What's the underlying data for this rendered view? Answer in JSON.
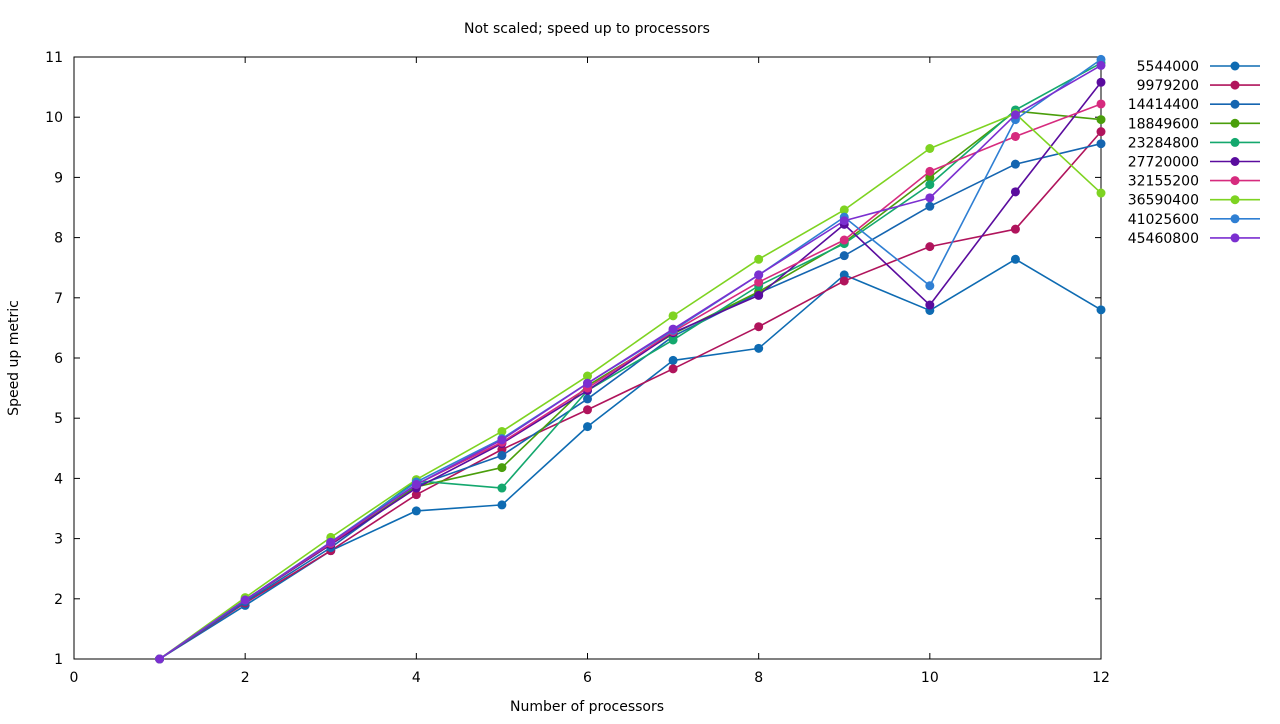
{
  "chart_data": {
    "type": "line",
    "title": "Not scaled; speed up to processors",
    "xlabel": "Number of processors",
    "ylabel": "Speed up metric",
    "xlim": [
      0,
      12
    ],
    "ylim": [
      1,
      11
    ],
    "x_ticks": [
      0,
      2,
      4,
      6,
      8,
      10,
      12
    ],
    "y_ticks": [
      1,
      2,
      3,
      4,
      5,
      6,
      7,
      8,
      9,
      10,
      11
    ],
    "grid": false,
    "legend_position": "outside-right",
    "x": [
      1,
      2,
      3,
      4,
      5,
      6,
      7,
      8,
      9,
      10,
      11,
      12
    ],
    "series": [
      {
        "name": "5544000",
        "color": "#0e6bb2",
        "values": [
          1,
          1.89,
          2.8,
          3.46,
          3.56,
          4.86,
          5.96,
          6.16,
          7.38,
          6.79,
          7.64,
          6.8
        ]
      },
      {
        "name": "9979200",
        "color": "#b0145c",
        "values": [
          1,
          1.93,
          2.8,
          3.73,
          4.48,
          5.14,
          5.82,
          6.52,
          7.28,
          7.85,
          8.14,
          9.76
        ]
      },
      {
        "name": "14414400",
        "color": "#1565b0",
        "values": [
          1,
          1.95,
          2.85,
          3.88,
          4.38,
          5.32,
          6.36,
          7.08,
          7.7,
          8.52,
          9.22,
          9.56
        ]
      },
      {
        "name": "18849600",
        "color": "#4a9e0b",
        "values": [
          1,
          1.98,
          2.9,
          3.86,
          4.18,
          5.54,
          6.4,
          7.1,
          7.92,
          9.0,
          10.1,
          9.96
        ]
      },
      {
        "name": "23284800",
        "color": "#14a86e",
        "values": [
          1,
          1.98,
          2.92,
          3.96,
          3.84,
          5.46,
          6.3,
          7.2,
          7.9,
          8.88,
          10.12,
          10.9
        ]
      },
      {
        "name": "27720000",
        "color": "#5a0c9e",
        "values": [
          1,
          1.98,
          2.9,
          3.84,
          4.58,
          5.46,
          6.42,
          7.04,
          8.22,
          6.88,
          8.76,
          10.58
        ]
      },
      {
        "name": "32155200",
        "color": "#d62b7e",
        "values": [
          1,
          1.98,
          2.92,
          3.9,
          4.6,
          5.5,
          6.44,
          7.26,
          7.96,
          9.1,
          9.68,
          10.22
        ]
      },
      {
        "name": "36590400",
        "color": "#7ed321",
        "values": [
          1,
          2.02,
          3.02,
          3.98,
          4.78,
          5.7,
          6.7,
          7.64,
          8.46,
          9.48,
          10.06,
          8.74
        ]
      },
      {
        "name": "41025600",
        "color": "#2f7fd3",
        "values": [
          1,
          1.98,
          2.94,
          3.94,
          4.66,
          5.58,
          6.46,
          7.38,
          8.34,
          7.2,
          9.96,
          10.96
        ]
      },
      {
        "name": "45460800",
        "color": "#7b2fd0",
        "values": [
          1,
          1.98,
          2.94,
          3.9,
          4.64,
          5.58,
          6.48,
          7.38,
          8.28,
          8.66,
          10.04,
          10.86
        ]
      }
    ]
  }
}
